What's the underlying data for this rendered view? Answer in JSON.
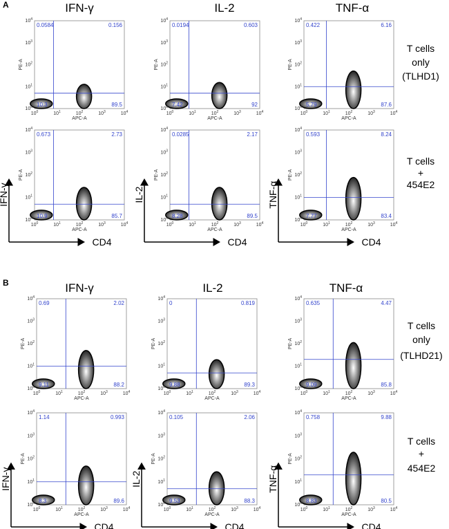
{
  "panels": [
    {
      "letter": "A",
      "columns": [
        "IFN-γ",
        "IL-2",
        "TNF-α"
      ],
      "rows": [
        {
          "label": [
            "T cells",
            "only",
            "(TLHD1)"
          ],
          "axis_arrows": false
        },
        {
          "label": [
            "T cells",
            "+",
            "454E2"
          ],
          "axis_arrows": true
        }
      ]
    },
    {
      "letter": "B",
      "columns": [
        "IFN-γ",
        "IL-2",
        "TNF-α"
      ],
      "rows": [
        {
          "label": [
            "T cells",
            "only",
            "(TLHD21)"
          ],
          "axis_arrows": false
        },
        {
          "label": [
            "T cells",
            "+",
            "454E2"
          ],
          "axis_arrows": true
        }
      ]
    }
  ],
  "axes": {
    "x_small": "APC-A",
    "y_small": "PE-A",
    "x_arrow": "CD4",
    "y_arrow": [
      "IFN-γ",
      "IL-2",
      "TNF-α"
    ],
    "ticks": [
      "10",
      "10",
      "10",
      "10",
      "10"
    ],
    "tick_exponents": [
      "0",
      "1",
      "2",
      "3",
      "4"
    ]
  },
  "chart_data": [
    {
      "type": "scatter",
      "panel": "A",
      "row": "T cells only (TLHD1)",
      "marker": "IFN-γ",
      "xlabel": "APC-A",
      "ylabel": "PE-A",
      "xlim": [
        1,
        10000
      ],
      "ylim": [
        1,
        10000
      ],
      "x_scale": "log",
      "y_scale": "log",
      "gate": {
        "x": 7,
        "y": 5
      },
      "quadrants": {
        "UL": "0.0584",
        "UR": "0.156",
        "LL": "10.3",
        "LR": "89.5"
      },
      "density": [
        {
          "x": 2,
          "y": 1.8,
          "weight": 0.2
        },
        {
          "x": 160,
          "y": 2.0,
          "weight": 0.8
        }
      ]
    },
    {
      "type": "scatter",
      "panel": "A",
      "row": "T cells only (TLHD1)",
      "marker": "IL-2",
      "xlabel": "APC-A",
      "ylabel": "PE-A",
      "xlim": [
        1,
        10000
      ],
      "ylim": [
        1,
        10000
      ],
      "x_scale": "log",
      "y_scale": "log",
      "gate": {
        "x": 7,
        "y": 5
      },
      "quadrants": {
        "UL": "0.0194",
        "UR": "0.603",
        "LL": "7.42",
        "LR": "92"
      },
      "density": [
        {
          "x": 2,
          "y": 1.8,
          "weight": 0.2
        },
        {
          "x": 160,
          "y": 2.2,
          "weight": 0.8
        }
      ]
    },
    {
      "type": "scatter",
      "panel": "A",
      "row": "T cells only (TLHD1)",
      "marker": "TNF-α",
      "xlabel": "APC-A",
      "ylabel": "PE-A",
      "xlim": [
        1,
        10000
      ],
      "ylim": [
        1,
        10000
      ],
      "x_scale": "log",
      "y_scale": "log",
      "gate": {
        "x": 10,
        "y": 10
      },
      "quadrants": {
        "UL": "0.422",
        "UR": "6.16",
        "LL": "5.79",
        "LR": "87.6"
      },
      "density": [
        {
          "x": 2,
          "y": 3,
          "weight": 0.2
        },
        {
          "x": 160,
          "y": 4,
          "weight": 0.8
        }
      ]
    },
    {
      "type": "scatter",
      "panel": "A",
      "row": "T cells + 454E2",
      "marker": "IFN-γ",
      "xlabel": "APC-A",
      "ylabel": "PE-A",
      "xlim": [
        1,
        10000
      ],
      "ylim": [
        1,
        10000
      ],
      "x_scale": "log",
      "y_scale": "log",
      "gate": {
        "x": 7,
        "y": 5
      },
      "quadrants": {
        "UL": "0.673",
        "UR": "2.73",
        "LL": "10.9",
        "LR": "85.7"
      },
      "density": [
        {
          "x": 2,
          "y": 2,
          "weight": 0.25
        },
        {
          "x": 160,
          "y": 3,
          "weight": 0.75
        }
      ]
    },
    {
      "type": "scatter",
      "panel": "A",
      "row": "T cells + 454E2",
      "marker": "IL-2",
      "xlabel": "APC-A",
      "ylabel": "PE-A",
      "xlim": [
        1,
        10000
      ],
      "ylim": [
        1,
        10000
      ],
      "x_scale": "log",
      "y_scale": "log",
      "gate": {
        "x": 7,
        "y": 5
      },
      "quadrants": {
        "UL": "0.0285",
        "UR": "2.17",
        "LL": "8.28",
        "LR": "89.5"
      },
      "density": [
        {
          "x": 2,
          "y": 2,
          "weight": 0.2
        },
        {
          "x": 160,
          "y": 3,
          "weight": 0.8
        }
      ]
    },
    {
      "type": "scatter",
      "panel": "A",
      "row": "T cells + 454E2",
      "marker": "TNF-α",
      "xlabel": "APC-A",
      "ylabel": "PE-A",
      "xlim": [
        1,
        10000
      ],
      "ylim": [
        1,
        10000
      ],
      "x_scale": "log",
      "y_scale": "log",
      "gate": {
        "x": 10,
        "y": 10
      },
      "quadrants": {
        "UL": "0.593",
        "UR": "8.24",
        "LL": "7.77",
        "LR": "83.4"
      },
      "density": [
        {
          "x": 2,
          "y": 3,
          "weight": 0.2
        },
        {
          "x": 160,
          "y": 5,
          "weight": 0.8
        }
      ]
    },
    {
      "type": "scatter",
      "panel": "B",
      "row": "T cells only (TLHD21)",
      "marker": "IFN-γ",
      "xlabel": "APC-A",
      "ylabel": "PE-A",
      "xlim": [
        1,
        10000
      ],
      "ylim": [
        1,
        10000
      ],
      "x_scale": "log",
      "y_scale": "log",
      "gate": {
        "x": 20,
        "y": 10
      },
      "quadrants": {
        "UL": "0.69",
        "UR": "2.02",
        "LL": "9.11",
        "LR": "88.2"
      },
      "density": [
        {
          "x": 2,
          "y": 3,
          "weight": 0.2
        },
        {
          "x": 160,
          "y": 4,
          "weight": 0.8
        }
      ]
    },
    {
      "type": "scatter",
      "panel": "B",
      "row": "T cells only (TLHD21)",
      "marker": "IL-2",
      "xlabel": "APC-A",
      "ylabel": "PE-A",
      "xlim": [
        1,
        10000
      ],
      "ylim": [
        1,
        10000
      ],
      "x_scale": "log",
      "y_scale": "log",
      "gate": {
        "x": 20,
        "y": 5
      },
      "quadrants": {
        "UL": "0",
        "UR": "0.819",
        "LL": "9.88",
        "LR": "89.3"
      },
      "density": [
        {
          "x": 2,
          "y": 2,
          "weight": 0.2
        },
        {
          "x": 160,
          "y": 2.5,
          "weight": 0.8
        }
      ]
    },
    {
      "type": "scatter",
      "panel": "B",
      "row": "T cells only (TLHD21)",
      "marker": "TNF-α",
      "xlabel": "APC-A",
      "ylabel": "PE-A",
      "xlim": [
        1,
        10000
      ],
      "ylim": [
        1,
        10000
      ],
      "x_scale": "log",
      "y_scale": "log",
      "gate": {
        "x": 20,
        "y": 20
      },
      "quadrants": {
        "UL": "0.635",
        "UR": "4.47",
        "LL": "9.09",
        "LR": "85.8"
      },
      "density": [
        {
          "x": 2,
          "y": 4,
          "weight": 0.2
        },
        {
          "x": 160,
          "y": 6,
          "weight": 0.8
        }
      ]
    },
    {
      "type": "scatter",
      "panel": "B",
      "row": "T cells + 454E2",
      "marker": "IFN-γ",
      "xlabel": "APC-A",
      "ylabel": "PE-A",
      "xlim": [
        1,
        10000
      ],
      "ylim": [
        1,
        10000
      ],
      "x_scale": "log",
      "y_scale": "log",
      "gate": {
        "x": 20,
        "y": 10
      },
      "quadrants": {
        "UL": "1.14",
        "UR": "0.993",
        "LL": "8.3",
        "LR": "89.6"
      },
      "density": [
        {
          "x": 2,
          "y": 3,
          "weight": 0.2
        },
        {
          "x": 160,
          "y": 4,
          "weight": 0.8
        }
      ]
    },
    {
      "type": "scatter",
      "panel": "B",
      "row": "T cells + 454E2",
      "marker": "IL-2",
      "xlabel": "APC-A",
      "ylabel": "PE-A",
      "xlim": [
        1,
        10000
      ],
      "ylim": [
        1,
        10000
      ],
      "x_scale": "log",
      "y_scale": "log",
      "gate": {
        "x": 20,
        "y": 5
      },
      "quadrants": {
        "UL": "0.105",
        "UR": "2.06",
        "LL": "9.53",
        "LR": "88.3"
      },
      "density": [
        {
          "x": 2,
          "y": 2,
          "weight": 0.2
        },
        {
          "x": 160,
          "y": 3,
          "weight": 0.8
        }
      ]
    },
    {
      "type": "scatter",
      "panel": "B",
      "row": "T cells + 454E2",
      "marker": "TNF-α",
      "xlabel": "APC-A",
      "ylabel": "PE-A",
      "xlim": [
        1,
        10000
      ],
      "ylim": [
        1,
        10000
      ],
      "x_scale": "log",
      "y_scale": "log",
      "gate": {
        "x": 20,
        "y": 20
      },
      "quadrants": {
        "UL": "0.758",
        "UR": "9.88",
        "LL": "8.83",
        "LR": "80.5"
      },
      "density": [
        {
          "x": 2,
          "y": 4,
          "weight": 0.2
        },
        {
          "x": 160,
          "y": 8,
          "weight": 0.8
        }
      ]
    }
  ]
}
